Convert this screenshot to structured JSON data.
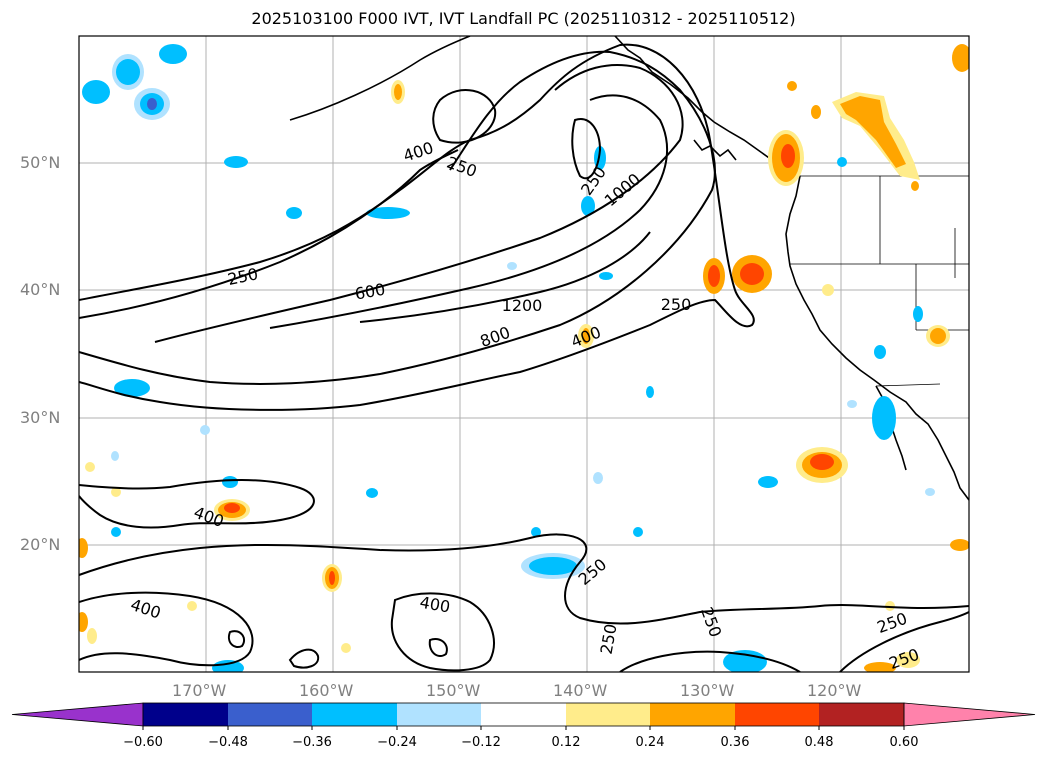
{
  "title": "2025103100 F000 IVT, IVT Landfall PC (2025110312 - 2025110512)",
  "lat_labels": [
    "50°N",
    "40°N",
    "30°N",
    "20°N"
  ],
  "lon_labels": [
    "170°W",
    "160°W",
    "150°W",
    "140°W",
    "130°W",
    "120°W"
  ],
  "contour_labels": {
    "c400a": "400",
    "c250a": "250",
    "c250b": "250",
    "c1000": "1000",
    "c250c": "250",
    "c600": "600",
    "c1200": "1200",
    "c800": "800",
    "c400b": "400",
    "c250d": "250",
    "c400c": "400",
    "c250e": "250",
    "c400d": "400",
    "c400e": "400",
    "c250f": "250",
    "c250g": "250",
    "c250h": "250",
    "c250i": "250"
  },
  "colorbar": {
    "ticks": [
      "−0.60",
      "−0.48",
      "−0.36",
      "−0.24",
      "−0.12",
      "0.12",
      "0.24",
      "0.36",
      "0.48",
      "0.60"
    ],
    "colors": [
      "#9932cc",
      "#00008b",
      "#3a5fcd",
      "#00bfff",
      "#b0e2ff",
      "#ffffff",
      "#ffec8b",
      "#ffa500",
      "#ff4500",
      "#b22222",
      "#ff82ab"
    ]
  },
  "colors": {
    "neg_light": "#b0e2ff",
    "neg_mid": "#00bfff",
    "neg_dark": "#3a5fcd",
    "pos_light": "#ffec8b",
    "pos_mid": "#ffa500",
    "pos_dark": "#ff4500",
    "grid": "#b0b0b0",
    "axis_label": "#808080"
  }
}
